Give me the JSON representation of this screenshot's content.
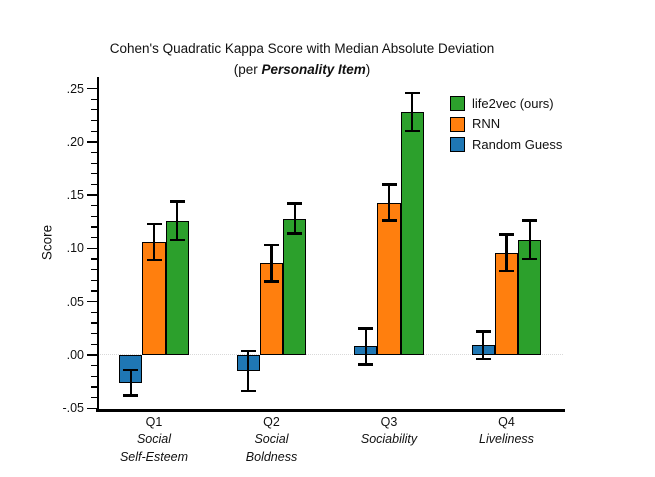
{
  "title": {
    "line1": "Cohen's Quadratic Kappa Score with Median Absolute Deviation",
    "line2_prefix": "(per ",
    "line2_emphasis": "Personality Item",
    "line2_suffix": ")"
  },
  "y_axis": {
    "label": "Score",
    "tick_labels": [
      ".25",
      ".20",
      ".15",
      ".10",
      ".05",
      ".00",
      "-.05"
    ],
    "tick_values": [
      0.25,
      0.2,
      0.15,
      0.1,
      0.05,
      0.0,
      -0.05
    ],
    "minor_tick_step": 0.01
  },
  "legend": {
    "position": "upper right",
    "entries": [
      {
        "label": "life2vec (ours)",
        "color": "#2ca02c"
      },
      {
        "label": "RNN",
        "color": "#ff7f0e"
      },
      {
        "label": "Random Guess",
        "color": "#1f77b4"
      }
    ]
  },
  "chart_data": {
    "type": "bar",
    "title": "Cohen's Quadratic Kappa Score with Median Absolute Deviation (per Personality Item)",
    "xlabel": "",
    "ylabel": "Score",
    "ylim": [
      -0.05,
      0.26
    ],
    "grid": false,
    "zero_line": true,
    "error_bars": "median absolute deviation",
    "categories": [
      {
        "id": "Q1",
        "label": "Q1",
        "sublabel": [
          "Social",
          "Self-Esteem"
        ]
      },
      {
        "id": "Q2",
        "label": "Q2",
        "sublabel": [
          "Social",
          "Boldness"
        ]
      },
      {
        "id": "Q3",
        "label": "Q3",
        "sublabel": [
          "Sociability"
        ]
      },
      {
        "id": "Q4",
        "label": "Q4",
        "sublabel": [
          "Liveliness"
        ]
      }
    ],
    "series": [
      {
        "name": "Random Guess",
        "color": "#1f77b4",
        "values": [
          -0.026,
          -0.015,
          0.008,
          0.009
        ],
        "errors": [
          0.012,
          0.019,
          0.017,
          0.013
        ]
      },
      {
        "name": "RNN",
        "color": "#ff7f0e",
        "values": [
          0.106,
          0.086,
          0.143,
          0.096
        ],
        "errors": [
          0.017,
          0.017,
          0.017,
          0.017
        ]
      },
      {
        "name": "life2vec (ours)",
        "color": "#2ca02c",
        "values": [
          0.126,
          0.128,
          0.228,
          0.108
        ],
        "errors": [
          0.018,
          0.014,
          0.018,
          0.018
        ]
      }
    ]
  }
}
